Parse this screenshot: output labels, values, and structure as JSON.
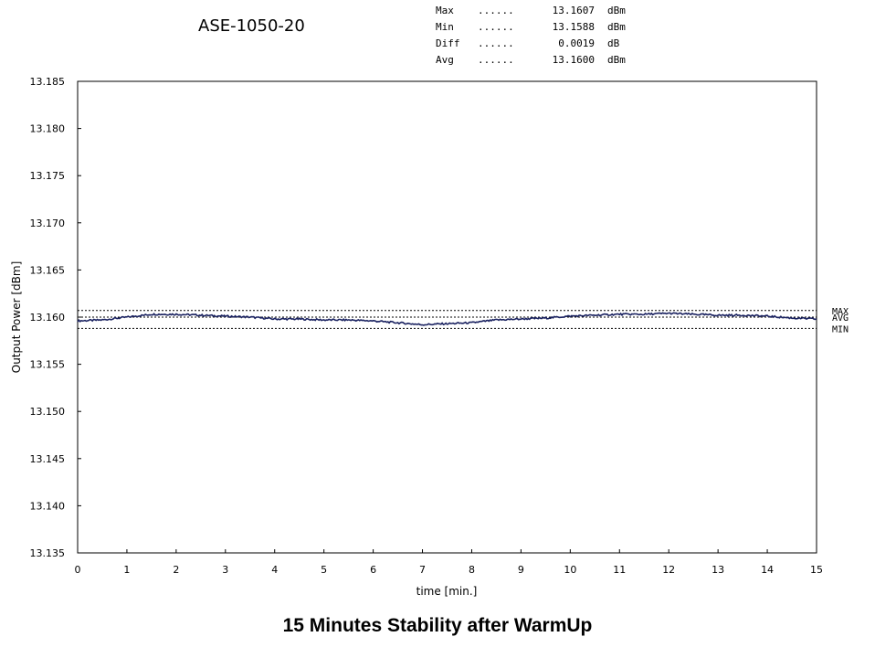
{
  "chart_data": {
    "type": "line",
    "title": "ASE-1050-20",
    "caption": "15 Minutes Stability after WarmUp",
    "xlabel": "time [min.]",
    "ylabel": "Output Power [dBm]",
    "xlim": [
      0,
      15
    ],
    "ylim": [
      13.135,
      13.185
    ],
    "x_ticks": [
      "0",
      "1",
      "2",
      "3",
      "4",
      "5",
      "6",
      "7",
      "8",
      "9",
      "10",
      "11",
      "12",
      "13",
      "14",
      "15"
    ],
    "y_ticks": [
      "13.185",
      "13.180",
      "13.175",
      "13.170",
      "13.165",
      "13.160",
      "13.155",
      "13.150",
      "13.145",
      "13.140",
      "13.135"
    ],
    "series": [
      {
        "name": "Output Power",
        "color": "#1a2260",
        "x": [
          0,
          0.5,
          1,
          1.5,
          2,
          2.5,
          3,
          3.5,
          4,
          4.5,
          5,
          5.5,
          6,
          6.5,
          7,
          7.5,
          8,
          8.5,
          9,
          9.5,
          10,
          10.5,
          11,
          11.5,
          12,
          12.5,
          13,
          13.5,
          14,
          14.5,
          15
        ],
        "values": [
          13.1596,
          13.1597,
          13.16,
          13.1603,
          13.1603,
          13.1602,
          13.1601,
          13.16,
          13.1598,
          13.1598,
          13.1597,
          13.1597,
          13.1596,
          13.1594,
          13.1592,
          13.1593,
          13.1594,
          13.1597,
          13.1598,
          13.1599,
          13.1601,
          13.1602,
          13.1603,
          13.1603,
          13.1604,
          13.1603,
          13.1602,
          13.1602,
          13.1601,
          13.1599,
          13.1598
        ]
      }
    ],
    "reference_lines": [
      {
        "name": "MAX",
        "label": "MAX",
        "value": 13.1607
      },
      {
        "name": "AVG",
        "label": "AVG",
        "value": 13.16
      },
      {
        "name": "MIN",
        "label": "MIN",
        "value": 13.1588
      }
    ],
    "stats": [
      {
        "name": "Max",
        "dots": "......",
        "value": "13.1607",
        "unit": "dBm"
      },
      {
        "name": "Min",
        "dots": "......",
        "value": "13.1588",
        "unit": "dBm"
      },
      {
        "name": "Diff",
        "dots": "......",
        "value": "0.0019",
        "unit": "dB"
      },
      {
        "name": "Avg",
        "dots": "......",
        "value": "13.1600",
        "unit": "dBm"
      }
    ]
  }
}
